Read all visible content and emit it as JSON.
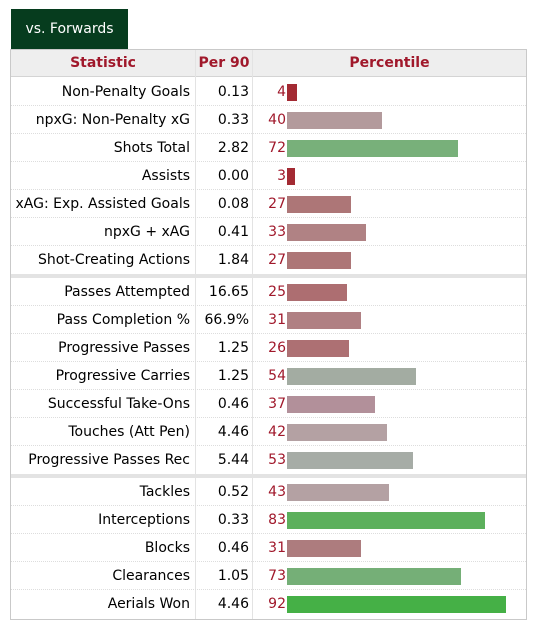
{
  "tab": {
    "label": "vs. Forwards"
  },
  "table": {
    "headers": {
      "statistic": "Statistic",
      "per90": "Per 90",
      "percentile": "Percentile"
    },
    "groups": [
      {
        "rows": [
          {
            "stat": "Non-Penalty Goals",
            "per90": "0.13",
            "percentile": "4",
            "color": "#a32a33"
          },
          {
            "stat": "npxG: Non-Penalty xG",
            "per90": "0.33",
            "percentile": "40",
            "color": "#b39a9c"
          },
          {
            "stat": "Shots Total",
            "per90": "2.82",
            "percentile": "72",
            "color": "#78b07a"
          },
          {
            "stat": "Assists",
            "per90": "0.00",
            "percentile": "3",
            "color": "#a32a33"
          },
          {
            "stat": "xAG: Exp. Assisted Goals",
            "per90": "0.08",
            "percentile": "27",
            "color": "#ad7677"
          },
          {
            "stat": "npxG + xAG",
            "per90": "0.41",
            "percentile": "33",
            "color": "#b08284"
          },
          {
            "stat": "Shot-Creating Actions",
            "per90": "1.84",
            "percentile": "27",
            "color": "#ad7677"
          }
        ]
      },
      {
        "rows": [
          {
            "stat": "Passes Attempted",
            "per90": "16.65",
            "percentile": "25",
            "color": "#ad6e71"
          },
          {
            "stat": "Pass Completion %",
            "per90": "66.9%",
            "percentile": "31",
            "color": "#b08083"
          },
          {
            "stat": "Progressive Passes",
            "per90": "1.25",
            "percentile": "26",
            "color": "#ad7073"
          },
          {
            "stat": "Progressive Carries",
            "per90": "1.25",
            "percentile": "54",
            "color": "#a3aca2"
          },
          {
            "stat": "Successful Take-Ons",
            "per90": "0.46",
            "percentile": "37",
            "color": "#b2909a"
          },
          {
            "stat": "Touches (Att Pen)",
            "per90": "4.46",
            "percentile": "42",
            "color": "#b4a1a3"
          },
          {
            "stat": "Progressive Passes Rec",
            "per90": "5.44",
            "percentile": "53",
            "color": "#a6aca6"
          }
        ]
      },
      {
        "rows": [
          {
            "stat": "Tackles",
            "per90": "0.52",
            "percentile": "43",
            "color": "#b4a1a3"
          },
          {
            "stat": "Interceptions",
            "per90": "0.33",
            "percentile": "83",
            "color": "#5cb05c"
          },
          {
            "stat": "Blocks",
            "per90": "0.46",
            "percentile": "31",
            "color": "#ad7c7e"
          },
          {
            "stat": "Clearances",
            "per90": "1.05",
            "percentile": "73",
            "color": "#75af77"
          },
          {
            "stat": "Aerials Won",
            "per90": "4.46",
            "percentile": "92",
            "color": "#45b046"
          }
        ]
      }
    ]
  }
}
